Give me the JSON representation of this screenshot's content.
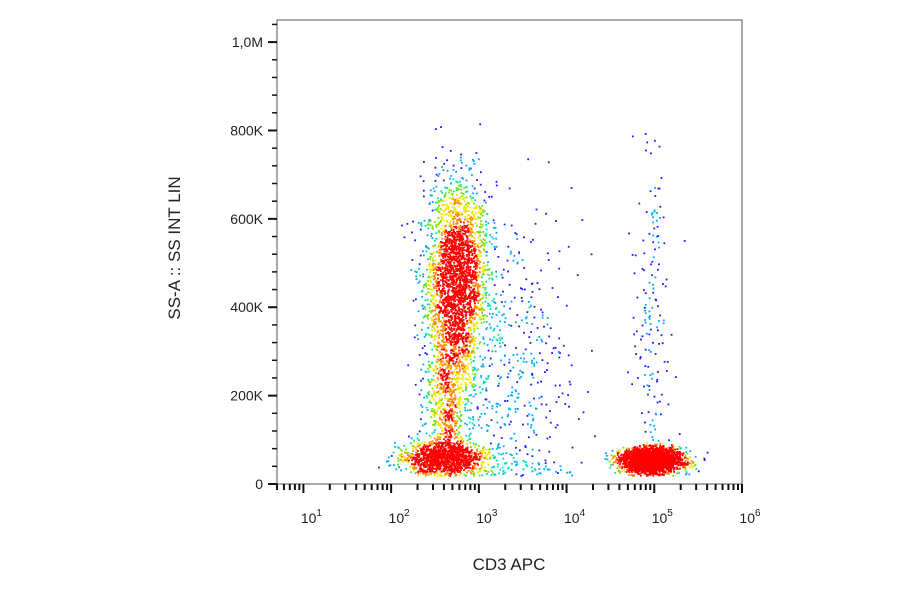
{
  "chart_data": {
    "type": "scatter",
    "subtype": "density-dot-plot",
    "title": "",
    "xlabel": "CD3 APC",
    "ylabel": "SS-A :: SS INT LIN",
    "x_scale": "log",
    "xlim": [
      5,
      1000000
    ],
    "ylim": [
      0,
      1050000
    ],
    "grid": false,
    "legend": "none",
    "x_ticks": [
      {
        "value": 10,
        "base": "10",
        "exp": "1"
      },
      {
        "value": 100,
        "base": "10",
        "exp": "2"
      },
      {
        "value": 1000,
        "base": "10",
        "exp": "3"
      },
      {
        "value": 10000,
        "base": "10",
        "exp": "4"
      },
      {
        "value": 100000,
        "base": "10",
        "exp": "5"
      },
      {
        "value": 1000000,
        "base": "10",
        "exp": "6"
      }
    ],
    "y_ticks": [
      {
        "value": 0,
        "label": "0"
      },
      {
        "value": 200000,
        "label": "200K"
      },
      {
        "value": 400000,
        "label": "400K"
      },
      {
        "value": 600000,
        "label": "600K"
      },
      {
        "value": 800000,
        "label": "800K"
      },
      {
        "value": 1000000,
        "label": "1,0M"
      }
    ],
    "density_colors": [
      "#1a1aff",
      "#00a6ff",
      "#00e0b0",
      "#7be000",
      "#f5e600",
      "#ff8c00",
      "#ff0000"
    ],
    "populations": [
      {
        "center_x": 550,
        "center_y": 460000,
        "spread_log_x": 0.18,
        "spread_y": 110000,
        "events": 2600
      },
      {
        "center_x": 420,
        "center_y": 180000,
        "spread_log_x": 0.13,
        "spread_y": 90000,
        "events": 700
      },
      {
        "center_x": 400,
        "center_y": 60000,
        "spread_log_x": 0.25,
        "spread_y": 18000,
        "events": 1100
      },
      {
        "center_x": 90000,
        "center_y": 55000,
        "spread_log_x": 0.17,
        "spread_y": 14000,
        "events": 2400
      },
      {
        "center_x": 2500,
        "center_y": 250000,
        "spread_log_x": 0.35,
        "spread_y": 200000,
        "events": 450
      },
      {
        "center_x": 90000,
        "center_y": 350000,
        "spread_log_x": 0.1,
        "spread_y": 250000,
        "events": 180
      }
    ]
  }
}
